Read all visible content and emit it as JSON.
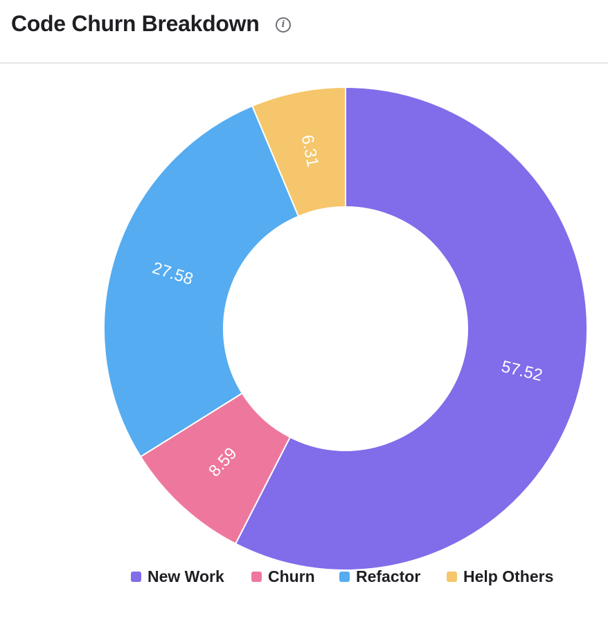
{
  "header": {
    "title": "Code Churn Breakdown",
    "info_icon": "info-icon"
  },
  "colors": {
    "new_work": "#816CEA",
    "churn": "#EE789D",
    "refactor": "#55ACF0",
    "help_others": "#F5C66B"
  },
  "chart_data": {
    "type": "pie",
    "variant": "donut",
    "title": "Code Churn Breakdown",
    "categories": [
      "New Work",
      "Churn",
      "Refactor",
      "Help Others"
    ],
    "values": [
      57.52,
      8.59,
      27.58,
      6.31
    ],
    "labels": [
      "57.52",
      "8.59",
      "27.58",
      "6.31"
    ],
    "legend_position": "bottom"
  }
}
